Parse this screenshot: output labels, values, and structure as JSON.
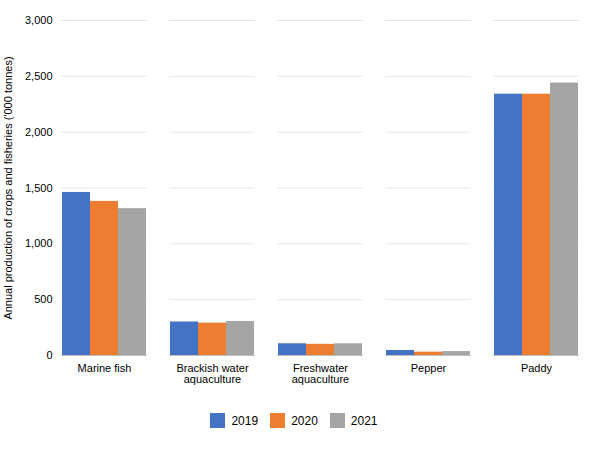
{
  "chart_data": {
    "type": "bar",
    "categories": [
      "Marine fish",
      "Brackish water\naquaculture",
      "Freshwater\naquaculture",
      "Pepper",
      "Paddy"
    ],
    "series": [
      {
        "name": "2019",
        "color": "#4472c4",
        "values": [
          1460,
          300,
          105,
          45,
          2340
        ]
      },
      {
        "name": "2020",
        "color": "#ed7d31",
        "values": [
          1380,
          290,
          100,
          30,
          2340
        ]
      },
      {
        "name": "2021",
        "color": "#a5a5a5",
        "values": [
          1315,
          305,
          105,
          35,
          2440
        ]
      }
    ],
    "ylabel": "Annual production of crops and fisheries ('000 tonnes)",
    "ylim": [
      0,
      3000
    ],
    "yticks": [
      0,
      500,
      1000,
      1500,
      2000,
      2500,
      3000
    ],
    "grid": true,
    "legend": "bottom"
  }
}
